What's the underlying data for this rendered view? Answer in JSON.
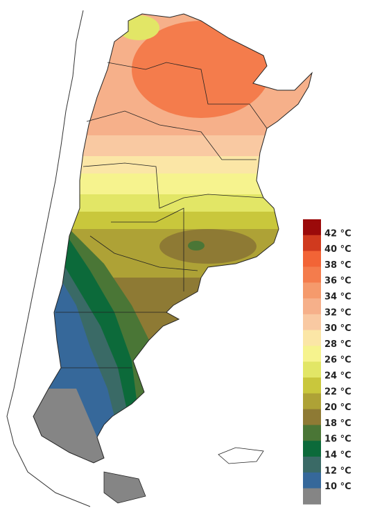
{
  "legend": {
    "labels": [
      "42 °C",
      "40 °C",
      "38 °C",
      "36 °C",
      "34 °C",
      "32 °C",
      "30 °C",
      "28 °C",
      "26 °C",
      "24 °C",
      "22 °C",
      "20 °C",
      "18 °C",
      "16 °C",
      "14 °C",
      "12 °C",
      "10 °C"
    ],
    "colors": [
      "#9b0a0a",
      "#d03a1e",
      "#f26436",
      "#f47c4c",
      "#f59a6c",
      "#f6b08a",
      "#f9c9a2",
      "#fbe6a6",
      "#f6f38e",
      "#e2e666",
      "#c9c73c",
      "#aea236",
      "#8e7a34",
      "#4a7636",
      "#0c6a3a",
      "#3a6a66",
      "#36689a",
      "#858585"
    ]
  }
}
